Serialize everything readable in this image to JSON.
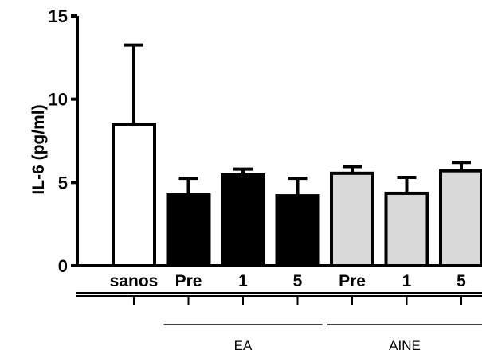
{
  "chart_data": {
    "type": "bar",
    "title": "",
    "xlabel": "",
    "ylabel": "IL-6 (pg/ml)",
    "ylim": [
      0,
      15
    ],
    "yticks": [
      "0",
      "5",
      "10",
      "15"
    ],
    "grid": false,
    "categories": [
      "sanos",
      "Pre",
      "1",
      "5",
      "Pre",
      "1",
      "5"
    ],
    "values": [
      8.5,
      4.25,
      5.45,
      4.2,
      5.55,
      4.35,
      5.7
    ],
    "error_upper": [
      13.25,
      5.25,
      5.8,
      5.25,
      5.95,
      5.3,
      6.2
    ],
    "bar_fills": [
      "#ffffff",
      "#000000",
      "#000000",
      "#000000",
      "#d9d9d9",
      "#d9d9d9",
      "#d9d9d9"
    ],
    "groups": [
      {
        "name": "EA",
        "members": [
          1,
          2,
          3
        ]
      },
      {
        "name": "AINE",
        "members": [
          4,
          5,
          6
        ]
      }
    ]
  }
}
